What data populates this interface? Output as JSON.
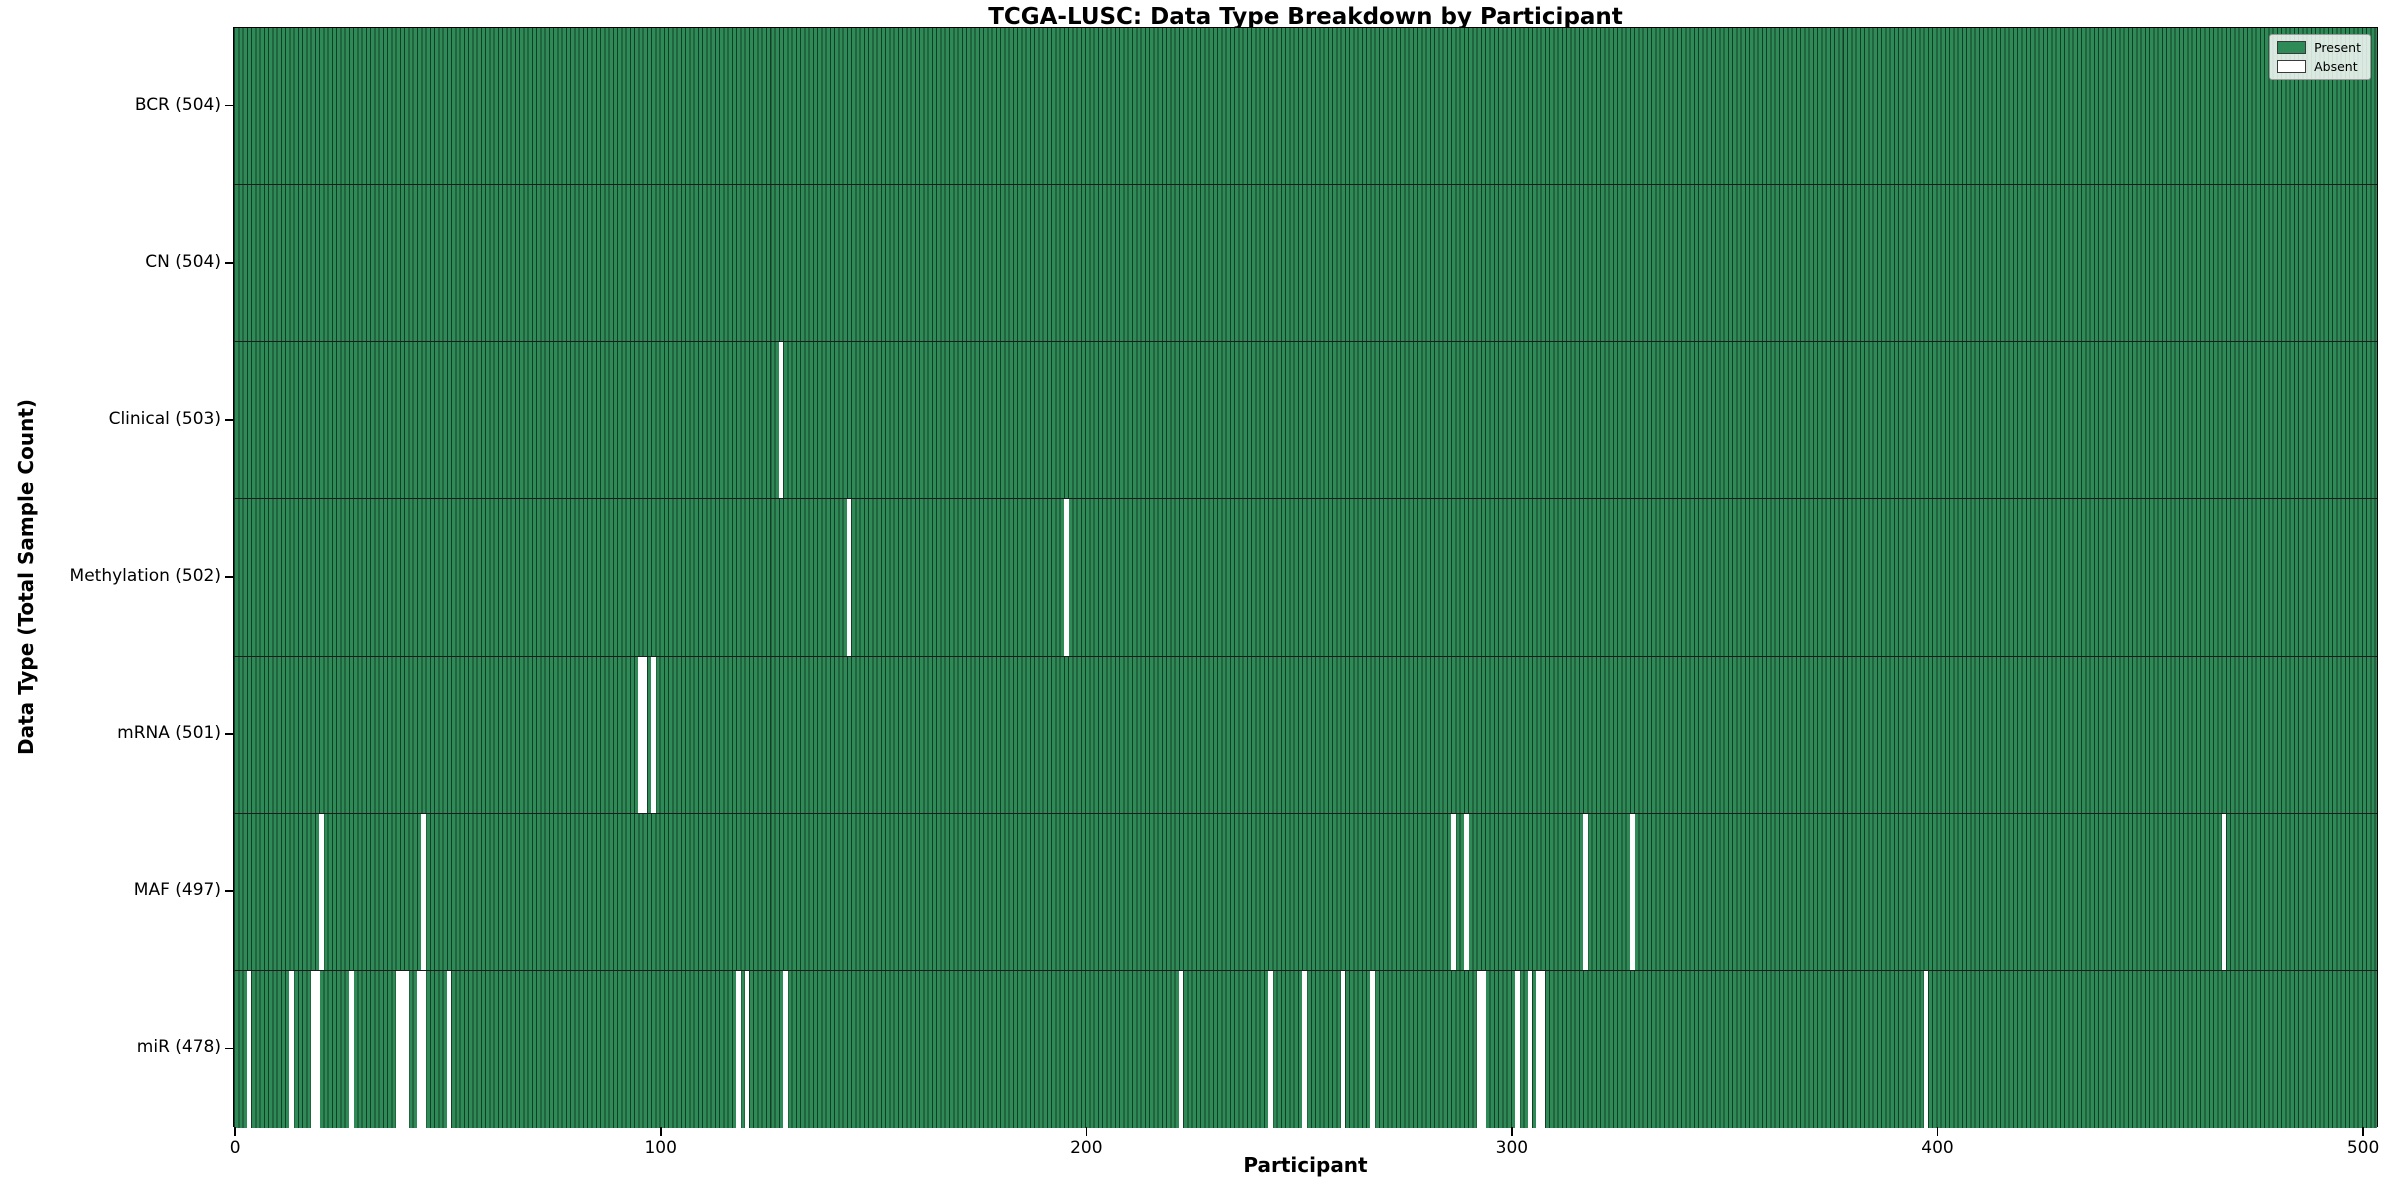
{
  "colors": {
    "present": "#2e8b57",
    "absent": "#ffffff",
    "bar_edge": "#143d26",
    "row_divider": "#1c1c1c",
    "plot_border": "#000000"
  },
  "legend": {
    "present_label": "Present",
    "absent_label": "Absent"
  },
  "chart_data": {
    "type": "heatmap",
    "title": "TCGA-LUSC: Data Type Breakdown by Participant",
    "xlabel": "Participant",
    "ylabel": "Data Type (Total Sample Count)",
    "n_participants": 504,
    "xlim": [
      -0.5,
      503.5
    ],
    "x_ticks": [
      0,
      100,
      200,
      300,
      400,
      500
    ],
    "grid": false,
    "legend_position": "upper right",
    "legend_entries": [
      {
        "label": "Present",
        "color": "#2e8b57"
      },
      {
        "label": "Absent",
        "color": "#ffffff"
      }
    ],
    "rows": [
      {
        "label": "BCR (504)",
        "name": "bcr",
        "present_count": 504,
        "absent_participants": []
      },
      {
        "label": "CN (504)",
        "name": "cn",
        "present_count": 504,
        "absent_participants": []
      },
      {
        "label": "Clinical (503)",
        "name": "clinical",
        "present_count": 503,
        "absent_participants": [
          128
        ]
      },
      {
        "label": "Methylation (502)",
        "name": "methylation",
        "present_count": 502,
        "absent_participants": [
          144,
          195
        ]
      },
      {
        "label": "mRNA (501)",
        "name": "mrna",
        "present_count": 501,
        "absent_participants": [
          95,
          96,
          98
        ]
      },
      {
        "label": "MAF (497)",
        "name": "maf",
        "present_count": 497,
        "absent_participants": [
          20,
          44,
          286,
          289,
          317,
          328,
          467
        ]
      },
      {
        "label": "miR (478)",
        "name": "mir",
        "present_count": 478,
        "absent_participants": [
          3,
          13,
          18,
          19,
          27,
          38,
          39,
          40,
          43,
          44,
          50,
          118,
          120,
          129,
          222,
          243,
          251,
          260,
          267,
          292,
          293,
          301,
          304,
          306,
          307,
          397
        ]
      }
    ]
  }
}
